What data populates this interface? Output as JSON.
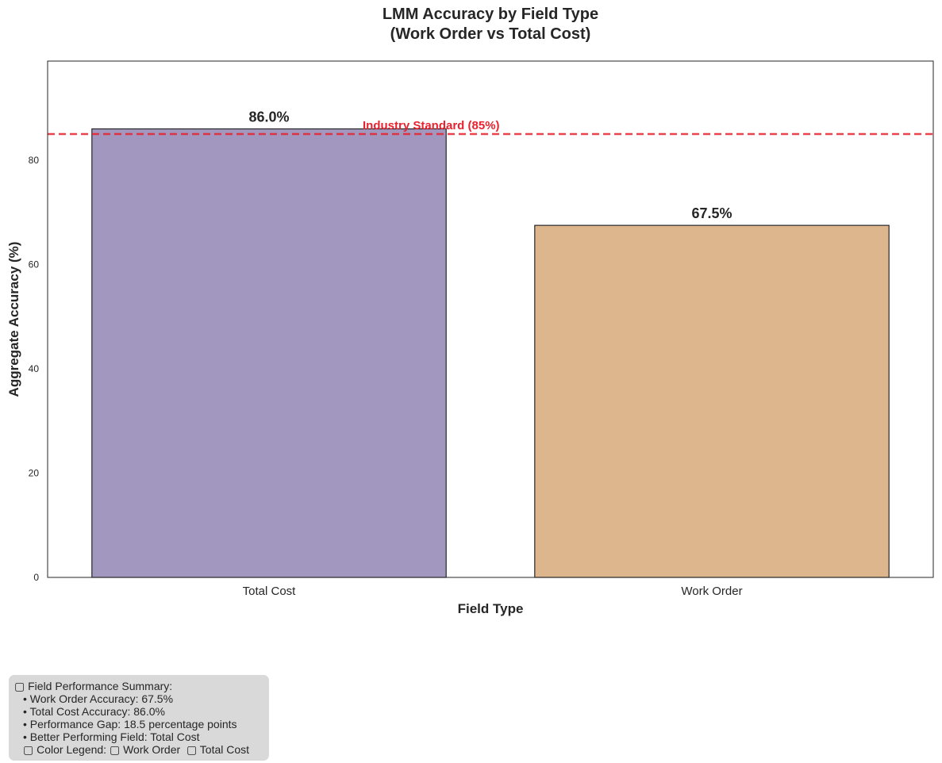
{
  "chart_data": {
    "type": "bar",
    "title_line1": "LMM Accuracy by Field Type",
    "title_line2": "(Work Order vs Total Cost)",
    "xlabel": "Field Type",
    "ylabel": "Aggregate Accuracy (%)",
    "categories": [
      "Total Cost",
      "Work Order"
    ],
    "values": [
      86.0,
      67.5
    ],
    "value_labels": [
      "86.0%",
      "67.5%"
    ],
    "colors": [
      "#a297be",
      "#deb68e"
    ],
    "ylim": [
      0,
      99
    ],
    "yticks": [
      0,
      20,
      40,
      60,
      80
    ],
    "grid": false,
    "reference_line": {
      "value": 85,
      "label": "Industry Standard (85%)",
      "color": "#e8222e"
    }
  },
  "summary": {
    "header": "▢ Field Performance Summary:",
    "items": [
      "• Work Order Accuracy: 67.5%",
      "• Total Cost Accuracy: 86.0%",
      "• Performance Gap: 18.5 percentage points",
      "• Better Performing Field: Total Cost"
    ],
    "legend_line": "▢ Color Legend: ▢ Work Order  ▢ Total Cost"
  }
}
